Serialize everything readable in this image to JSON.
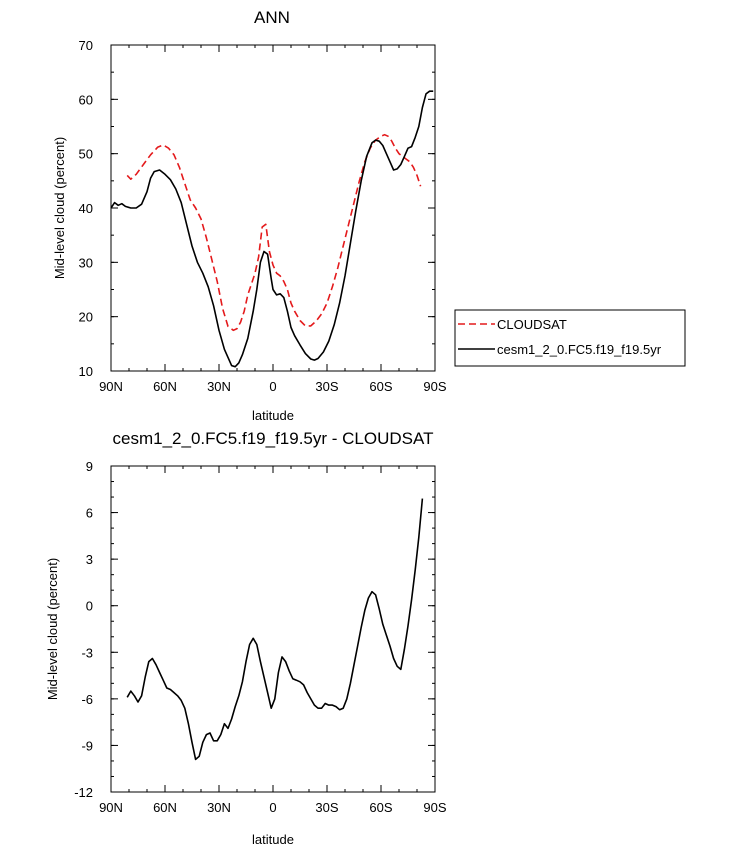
{
  "figure": {
    "top_title": "ANN",
    "bottom_title": "cesm1_2_0.FC5.f19_f19.5yr - CLOUDSAT"
  },
  "chart_data": [
    {
      "type": "line",
      "title": "ANN",
      "xlabel": "latitude",
      "ylabel": "Mid-level cloud (percent)",
      "xlim": [
        -90,
        90
      ],
      "ylim": [
        10,
        70
      ],
      "xticks": [
        -90,
        -60,
        -30,
        0,
        30,
        60,
        90
      ],
      "xtick_labels": [
        "90N",
        "60N",
        "30N",
        "0",
        "30S",
        "60S",
        "90S"
      ],
      "yticks": [
        10,
        20,
        30,
        40,
        50,
        60,
        70
      ],
      "ytick_labels": [
        "10",
        "20",
        "30",
        "40",
        "50",
        "60",
        "70"
      ],
      "legend_position": "right",
      "series": [
        {
          "name": "CLOUDSAT",
          "color": "#e41a1c",
          "dash": "dashed",
          "x": [
            -81,
            -79,
            -76,
            -72,
            -68,
            -64,
            -61,
            -58,
            -55,
            -52,
            -49,
            -46,
            -43,
            -40,
            -37,
            -34,
            -31,
            -28,
            -25,
            -22,
            -20,
            -18,
            -16,
            -14,
            -12,
            -10,
            -8,
            -6,
            -4,
            -2,
            0,
            2,
            4,
            6,
            8,
            10,
            12,
            15,
            18,
            21,
            24,
            27,
            30,
            33,
            36,
            39,
            42,
            45,
            48,
            51,
            54,
            57,
            60,
            62,
            64,
            66,
            68,
            70,
            72,
            74,
            76,
            78,
            80,
            82
          ],
          "y": [
            46,
            45.3,
            46.2,
            48,
            49.8,
            51.2,
            51.6,
            51,
            49.8,
            47.5,
            44.5,
            41.5,
            40,
            38,
            34.5,
            30.5,
            26.5,
            21.5,
            18.2,
            17.5,
            17.8,
            19,
            21,
            24,
            26,
            28,
            31,
            36.5,
            37,
            32,
            29.5,
            28,
            27.5,
            26.5,
            25,
            22.5,
            21,
            19.3,
            18.3,
            18.3,
            19.2,
            20.5,
            22.5,
            25.5,
            29,
            33,
            37,
            41,
            45,
            48.5,
            51,
            52.5,
            53.2,
            53.5,
            53.2,
            52.3,
            51,
            50,
            49.5,
            49,
            48.5,
            47.5,
            46,
            44
          ]
        },
        {
          "name": "cesm1_2_0.FC5.f19_f19.5yr",
          "color": "#000000",
          "dash": "solid",
          "x": [
            -90,
            -88,
            -86,
            -84,
            -82,
            -79,
            -76,
            -73,
            -70,
            -68,
            -66,
            -63,
            -60,
            -57,
            -54,
            -51,
            -48,
            -45,
            -42,
            -39,
            -36,
            -33,
            -30,
            -27,
            -25,
            -23,
            -21,
            -19,
            -17,
            -14,
            -11,
            -9,
            -7,
            -5,
            -3,
            -1,
            0,
            2,
            4,
            6,
            8,
            10,
            12,
            15,
            18,
            21,
            23,
            25,
            28,
            31,
            34,
            37,
            40,
            43,
            46,
            49,
            52,
            55,
            57,
            59,
            61,
            63,
            65,
            67,
            69,
            71,
            73,
            75,
            77,
            79,
            81,
            83,
            85,
            87,
            89
          ],
          "y": [
            40,
            41,
            40.5,
            40.8,
            40.3,
            40,
            40,
            40.7,
            43,
            45.5,
            46.7,
            47,
            46.2,
            45.2,
            43.5,
            41,
            37,
            33,
            30,
            28,
            25.5,
            22,
            17.5,
            14,
            12.5,
            11,
            10.8,
            11.5,
            13,
            16,
            21,
            25,
            30,
            32,
            31.5,
            27,
            25,
            24,
            24.2,
            23.5,
            21,
            18,
            16.5,
            14.8,
            13.2,
            12.2,
            12,
            12.3,
            13.5,
            15.5,
            18.5,
            22.5,
            27.5,
            33.5,
            39.5,
            45,
            49.5,
            52,
            52.5,
            52.3,
            51.5,
            50,
            48.5,
            47,
            47.2,
            48,
            49.5,
            51,
            51.3,
            53,
            55,
            58.5,
            61,
            61.5,
            61.5
          ]
        }
      ]
    },
    {
      "type": "line",
      "title": "cesm1_2_0.FC5.f19_f19.5yr - CLOUDSAT",
      "xlabel": "latitude",
      "ylabel": "Mid-level cloud (percent)",
      "xlim": [
        -90,
        90
      ],
      "ylim": [
        -12,
        9
      ],
      "xticks": [
        -90,
        -60,
        -30,
        0,
        30,
        60,
        90
      ],
      "xtick_labels": [
        "90N",
        "60N",
        "30N",
        "0",
        "30S",
        "60S",
        "90S"
      ],
      "yticks": [
        -12,
        -9,
        -6,
        -3,
        0,
        3,
        6,
        9
      ],
      "ytick_labels": [
        "-12",
        "-9",
        "-6",
        "-3",
        "0",
        "3",
        "6",
        "9"
      ],
      "series": [
        {
          "color": "#000000",
          "dash": "solid",
          "x": [
            -81,
            -79,
            -77,
            -75,
            -73,
            -71,
            -69,
            -67,
            -65,
            -63,
            -61,
            -59,
            -57,
            -55,
            -53,
            -51,
            -49,
            -47,
            -45,
            -43,
            -41,
            -39,
            -37,
            -35,
            -33,
            -31,
            -29,
            -27,
            -25,
            -23,
            -21,
            -19,
            -17,
            -15,
            -13,
            -11,
            -9,
            -7,
            -5,
            -3,
            -1,
            1,
            3,
            5,
            7,
            9,
            11,
            13,
            15,
            17,
            19,
            21,
            23,
            25,
            27,
            29,
            31,
            33,
            35,
            37,
            39,
            41,
            43,
            45,
            47,
            49,
            51,
            53,
            55,
            57,
            59,
            61,
            63,
            65,
            67,
            69,
            71,
            73,
            75,
            77,
            79,
            81,
            83
          ],
          "y": [
            -5.9,
            -5.5,
            -5.8,
            -6.2,
            -5.8,
            -4.6,
            -3.6,
            -3.4,
            -3.8,
            -4.3,
            -4.8,
            -5.3,
            -5.4,
            -5.6,
            -5.8,
            -6.1,
            -6.6,
            -7.6,
            -8.8,
            -9.9,
            -9.7,
            -8.8,
            -8.3,
            -8.2,
            -8.7,
            -8.7,
            -8.3,
            -7.6,
            -7.9,
            -7.3,
            -6.5,
            -5.8,
            -4.9,
            -3.6,
            -2.5,
            -2.1,
            -2.5,
            -3.6,
            -4.6,
            -5.6,
            -6.6,
            -6,
            -4.3,
            -3.3,
            -3.6,
            -4.2,
            -4.7,
            -4.8,
            -4.9,
            -5.1,
            -5.6,
            -6,
            -6.4,
            -6.6,
            -6.6,
            -6.3,
            -6.4,
            -6.4,
            -6.5,
            -6.7,
            -6.6,
            -6,
            -5,
            -3.8,
            -2.6,
            -1.4,
            -0.3,
            0.5,
            0.9,
            0.7,
            -0.2,
            -1.2,
            -1.9,
            -2.6,
            -3.4,
            -3.9,
            -4.1,
            -2.8,
            -1.3,
            0.4,
            2.3,
            4.4,
            6.9
          ]
        }
      ]
    }
  ]
}
